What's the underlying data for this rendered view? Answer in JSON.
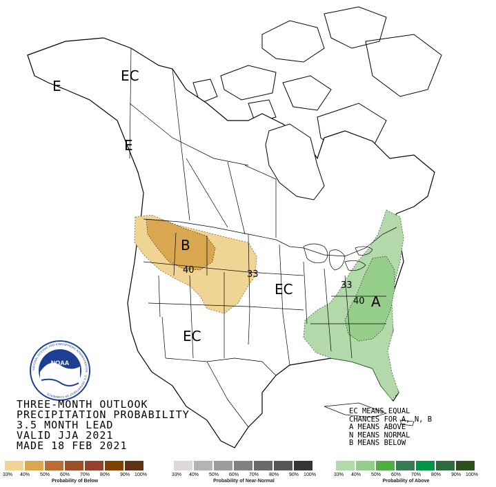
{
  "map": {
    "labels": {
      "ec_alaska": "EC",
      "e_alaska_coast": "E",
      "e_bc_coast": "E",
      "below_marker": "B",
      "ec_central": "EC",
      "ec_southwest": "EC",
      "above_marker": "A",
      "below_contour_40": "40",
      "below_contour_33": "33",
      "above_contour_33": "33",
      "above_contour_40": "40"
    },
    "colors": {
      "below_33": "#f0d493",
      "below_40": "#d8a750",
      "above_33": "#b3d9ab",
      "above_40": "#94ce8a"
    }
  },
  "logo": {
    "name": "NOAA",
    "ring_text": "NATIONAL OCEANIC AND ATMOSPHERIC ADMINISTRATION · U.S. DEPARTMENT OF COMMERCE"
  },
  "title": {
    "line1": "THREE-MONTH OUTLOOK",
    "line2": "PRECIPITATION PROBABILITY",
    "line3": "3.5 MONTH LEAD",
    "line4": "VALID JJA 2021",
    "line5": "MADE 18 FEB 2021"
  },
  "notes": {
    "line1": "EC MEANS EQUAL",
    "line2": "CHANCES FOR A, N, B",
    "line3": "A MEANS ABOVE",
    "line4": "N MEANS NORMAL",
    "line5": "B MEANS BELOW"
  },
  "legend": {
    "below": {
      "caption": "Probability of Below",
      "ticks": [
        "33%",
        "40%",
        "50%",
        "60%",
        "70%",
        "80%",
        "90%",
        "100%"
      ],
      "colors": [
        "#f0d493",
        "#d8a750",
        "#bb6d33",
        "#9b4f29",
        "#93402f",
        "#804000",
        "#5e3315"
      ]
    },
    "normal": {
      "caption": "Probability of Near-Normal",
      "ticks": [
        "33%",
        "40%",
        "50%",
        "60%",
        "70%",
        "80%",
        "90%",
        "100%"
      ],
      "colors": [
        "#ded8d9",
        "#b6b3b4",
        "#9b9b9b",
        "#808080",
        "#6a6a6a",
        "#565656",
        "#353535"
      ]
    },
    "above": {
      "caption": "Probability of Above",
      "ticks": [
        "33%",
        "40%",
        "50%",
        "60%",
        "70%",
        "80%",
        "90%",
        "100%"
      ],
      "colors": [
        "#b3d9ab",
        "#94ce8a",
        "#4fae44",
        "#3b7a57",
        "#009447",
        "#2f6a41",
        "#2d4f1c"
      ]
    }
  }
}
